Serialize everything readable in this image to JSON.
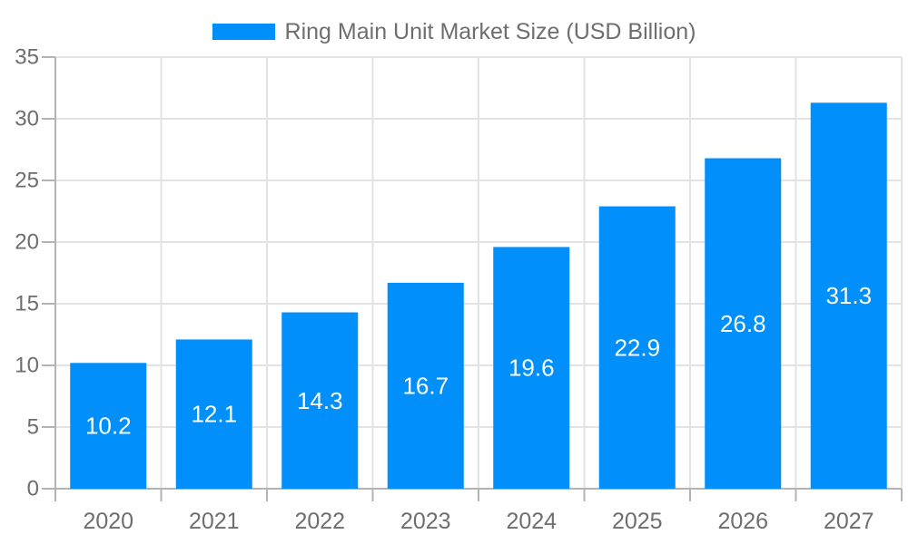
{
  "legend": {
    "label": "Ring Main Unit Market Size (USD Billion)"
  },
  "chart_data": {
    "type": "bar",
    "title": "Ring Main Unit Market Size (USD Billion)",
    "categories": [
      "2020",
      "2021",
      "2022",
      "2023",
      "2024",
      "2025",
      "2026",
      "2027"
    ],
    "series": [
      {
        "name": "Ring Main Unit Market Size (USD Billion)",
        "values": [
          10.2,
          12.1,
          14.3,
          16.7,
          19.6,
          22.9,
          26.8,
          31.3
        ]
      }
    ],
    "value_labels": [
      "10.2",
      "12.1",
      "14.3",
      "16.7",
      "19.6",
      "22.9",
      "26.8",
      "31.3"
    ],
    "xlabel": "",
    "ylabel": "",
    "ylim": [
      0,
      35
    ],
    "yticks": [
      0,
      5,
      10,
      15,
      20,
      25,
      30,
      35
    ],
    "grid": "both",
    "legend_position": "top",
    "value_label_position": "center-inside"
  },
  "colors": {
    "bar": "#008FFB",
    "grid": "#e3e3e3",
    "axis": "#b3b3b3",
    "label": "#6e6e6e",
    "value_label": "#ffffff",
    "background": "#ffffff"
  }
}
